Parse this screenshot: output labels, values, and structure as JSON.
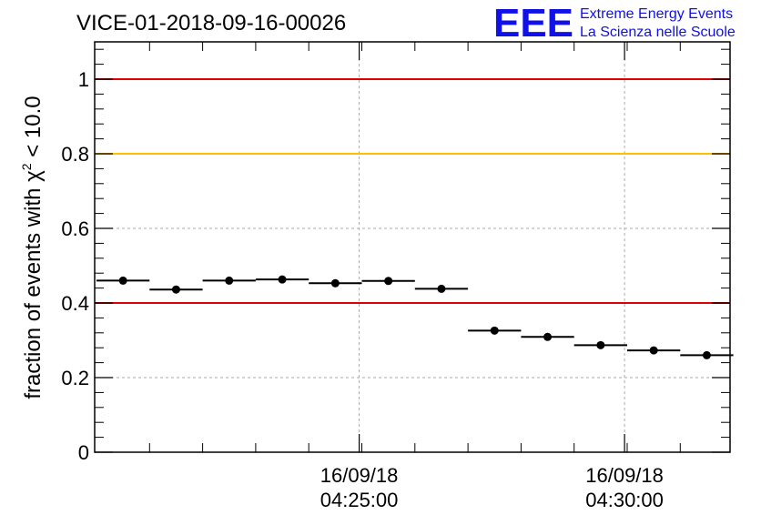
{
  "chart_data": {
    "type": "scatter",
    "title": "VICE-01-2018-09-16-00026",
    "ylabel_prefix": "fraction of events with ",
    "ylabel_symbol": "χ",
    "ylabel_power": "2",
    "ylabel_suffix": " < 10.0",
    "xlabel": "",
    "ylim": [
      0,
      1.1
    ],
    "yticks": [
      {
        "value": 0,
        "label": "0"
      },
      {
        "value": 0.2,
        "label": "0.2"
      },
      {
        "value": 0.4,
        "label": "0.4"
      },
      {
        "value": 0.6,
        "label": "0.6"
      },
      {
        "value": 0.8,
        "label": "0.8"
      },
      {
        "value": 1,
        "label": "1"
      }
    ],
    "xticks": [
      {
        "index": 4.95,
        "date": "16/09/18",
        "time": "04:25:00"
      },
      {
        "index": 9.95,
        "date": "16/09/18",
        "time": "04:30:00"
      }
    ],
    "reference_lines": [
      {
        "value": 1.0,
        "color": "#e00000"
      },
      {
        "value": 0.8,
        "color": "#ffbf00"
      },
      {
        "value": 0.4,
        "color": "#e00000"
      }
    ],
    "bins": 12,
    "values": [
      0.46,
      0.436,
      0.46,
      0.463,
      0.453,
      0.459,
      0.438,
      0.326,
      0.309,
      0.287,
      0.273,
      0.26
    ],
    "grid": true
  },
  "logo": {
    "letters": "EEE",
    "line1": "Extreme Energy Events",
    "line2": "La Scienza nelle Scuole",
    "color": "#1010e8"
  }
}
